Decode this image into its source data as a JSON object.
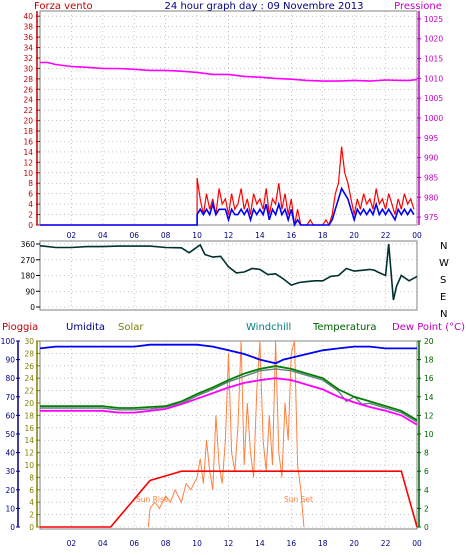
{
  "header": {
    "left_label": "Forza vento",
    "title": "24 hour graph day : 09 Novembre 2013",
    "right_label": "Pressione"
  },
  "colors": {
    "background": "#ffffff",
    "frame": "#808080",
    "grid": "#a0a0a0",
    "wind_gust": "#ff0000",
    "wind_avg": "#0000ff",
    "pressure": "#ff00ff",
    "direction": "#003030",
    "rain": "#ff0000",
    "humidity": "#0000ff",
    "solar": "#ff8040",
    "windchill": "#608080",
    "temperature": "#008000",
    "dewpoint": "#ff00ff",
    "label_red": "#c00000",
    "label_navy": "#000080",
    "label_olive": "#808000",
    "label_teal": "#008080",
    "label_green": "#006000",
    "label_magenta": "#c000c0"
  },
  "legend": {
    "pioggia": "Pioggia",
    "umidita": "Umidita",
    "solar": "Solar",
    "windchill": "Windchill",
    "temperatura": "Temperatura",
    "dewpoint": "Dew Point (°C)"
  },
  "direction_letters": [
    "N",
    "W",
    "S",
    "E",
    "N"
  ],
  "annotations": {
    "sunrise": "Sun Rise",
    "sunset": "Sun Set"
  },
  "x_ticks": [
    "02",
    "04",
    "06",
    "08",
    "10",
    "12",
    "14",
    "16",
    "18",
    "20",
    "22",
    "00"
  ],
  "chart_data": [
    {
      "type": "line",
      "title": "24 hour graph day : 09 Novembre 2013",
      "x_unit": "hour",
      "xlim": [
        0,
        24
      ],
      "y_left": {
        "label": "Forza vento",
        "ticks": [
          0,
          2,
          4,
          6,
          8,
          10,
          12,
          14,
          16,
          18,
          20,
          22,
          24,
          26,
          28,
          30,
          32,
          34,
          36,
          38,
          40
        ],
        "lim": [
          0,
          41
        ]
      },
      "y_right": {
        "label": "Pressione",
        "ticks": [
          975,
          980,
          985,
          990,
          995,
          1000,
          1005,
          1010,
          1015,
          1020,
          1025
        ],
        "lim": [
          973,
          1027
        ]
      },
      "series": [
        {
          "axis": "left",
          "x": [
            0,
            10.0,
            10.0,
            10.2,
            10.4,
            10.6,
            10.8,
            11.0,
            11.2,
            11.4,
            11.6,
            11.8,
            12.0,
            12.2,
            12.4,
            12.6,
            12.8,
            13.0,
            13.2,
            13.4,
            13.6,
            13.8,
            14.0,
            14.2,
            14.4,
            14.6,
            14.8,
            15.0,
            15.2,
            15.4,
            15.6,
            15.8,
            16.0,
            16.2,
            16.4,
            16.6,
            16.8,
            17.0,
            17.2,
            17.4,
            17.6,
            17.8,
            18.0,
            18.2,
            18.4,
            18.6,
            18.8,
            19.0,
            19.2,
            19.4,
            19.6,
            19.8,
            20.0,
            20.2,
            20.4,
            20.6,
            20.8,
            21.0,
            21.2,
            21.4,
            21.6,
            21.8,
            22.0,
            22.2,
            22.4,
            22.6,
            22.8,
            23.0,
            23.2,
            23.4,
            23.6,
            23.8
          ],
          "values": [
            0,
            0,
            9,
            5,
            2,
            6,
            3,
            5,
            2,
            7,
            4,
            5,
            2,
            6,
            3,
            4,
            7,
            3,
            5,
            2,
            6,
            4,
            5,
            3,
            7,
            2,
            5,
            4,
            8,
            3,
            6,
            2,
            5,
            0,
            3,
            0,
            0,
            0,
            1,
            0,
            0,
            0,
            0,
            1,
            0,
            2,
            6,
            8,
            15,
            10,
            8,
            5,
            2,
            5,
            3,
            6,
            4,
            5,
            3,
            7,
            4,
            5,
            3,
            6,
            4,
            2,
            5,
            3,
            6,
            4,
            5,
            3
          ]
        },
        {
          "axis": "left",
          "x": [
            0,
            10.0,
            10.0,
            10.2,
            10.4,
            10.6,
            10.8,
            11.0,
            11.2,
            11.4,
            11.6,
            11.8,
            12.0,
            12.2,
            12.4,
            12.6,
            12.8,
            13.0,
            13.2,
            13.4,
            13.6,
            13.8,
            14.0,
            14.2,
            14.4,
            14.6,
            14.8,
            15.0,
            15.2,
            15.4,
            15.6,
            15.8,
            16.0,
            16.2,
            16.4,
            16.6,
            16.8,
            17.0,
            17.2,
            17.4,
            17.6,
            17.8,
            18.0,
            18.2,
            18.4,
            18.6,
            18.8,
            19.0,
            19.2,
            19.4,
            19.6,
            19.8,
            20.0,
            20.2,
            20.4,
            20.6,
            20.8,
            21.0,
            21.2,
            21.4,
            21.6,
            21.8,
            22.0,
            22.2,
            22.4,
            22.6,
            22.8,
            23.0,
            23.2,
            23.4,
            23.6,
            23.8
          ],
          "values": [
            0,
            0,
            2,
            3,
            2,
            3,
            2,
            4,
            2,
            3,
            3,
            3,
            1,
            3,
            2,
            2,
            3,
            2,
            3,
            1,
            3,
            2,
            3,
            2,
            4,
            1,
            3,
            2,
            4,
            2,
            3,
            1,
            3,
            0,
            1,
            0,
            0,
            0,
            0,
            0,
            0,
            0,
            0,
            0,
            0,
            1,
            3,
            5,
            7,
            6,
            5,
            3,
            1,
            3,
            2,
            3,
            2,
            3,
            2,
            4,
            2,
            3,
            2,
            3,
            2,
            1,
            3,
            2,
            3,
            2,
            3,
            2
          ]
        },
        {
          "axis": "right",
          "x": [
            0,
            0.5,
            1,
            2,
            3,
            4,
            5,
            6,
            7,
            8,
            9,
            10,
            11,
            12,
            13,
            14,
            15,
            16,
            17,
            18,
            19,
            20,
            21,
            22,
            23,
            23.5,
            24
          ],
          "values": [
            1014,
            1014,
            1013.5,
            1013,
            1012.8,
            1012.5,
            1012.5,
            1012.3,
            1012,
            1012,
            1011.8,
            1011.5,
            1011,
            1011,
            1010.5,
            1010.3,
            1010,
            1009.8,
            1009.5,
            1009.3,
            1009.3,
            1009.5,
            1009.3,
            1009.6,
            1009.5,
            1009.5,
            1009.7
          ]
        }
      ]
    },
    {
      "type": "line",
      "x_unit": "hour",
      "xlim": [
        0,
        24
      ],
      "y_left": {
        "ticks": [
          0,
          90,
          180,
          270,
          360
        ],
        "lim": [
          0,
          360
        ]
      },
      "series": [
        {
          "x": [
            0,
            0.5,
            1,
            2,
            3,
            4,
            5,
            6,
            7,
            8,
            9,
            9.5,
            9.8,
            10.2,
            10.5,
            11,
            11.5,
            12,
            12.5,
            13,
            13.5,
            14,
            14.5,
            15,
            15.5,
            16,
            16.5,
            17,
            17.5,
            18,
            18.5,
            19,
            19.5,
            20,
            20.5,
            21,
            21.3,
            21.5,
            22,
            22.2,
            22.5,
            22.7,
            23,
            23.5,
            24
          ],
          "values": [
            350,
            345,
            340,
            340,
            345,
            345,
            348,
            348,
            348,
            340,
            338,
            310,
            330,
            355,
            300,
            285,
            290,
            230,
            195,
            200,
            220,
            215,
            185,
            190,
            160,
            125,
            140,
            145,
            150,
            150,
            175,
            180,
            220,
            205,
            210,
            215,
            210,
            200,
            180,
            360,
            40,
            120,
            180,
            150,
            175
          ]
        }
      ]
    },
    {
      "type": "line",
      "x_unit": "hour",
      "xlim": [
        0,
        24
      ],
      "y_axes": [
        {
          "name": "Pioggia",
          "ticks": [
            0,
            10,
            20,
            30,
            40,
            50,
            60,
            70,
            80,
            90,
            100
          ],
          "lim": [
            0,
            100
          ]
        },
        {
          "name": "Umidita",
          "ticks": [
            0,
            2,
            4,
            6,
            8,
            10,
            12,
            14,
            16,
            18,
            20,
            22,
            24,
            26,
            28,
            30
          ],
          "lim": [
            0,
            30
          ]
        },
        {
          "name": "Temperatura",
          "ticks": [
            0,
            2,
            4,
            6,
            8,
            10,
            12,
            14,
            16,
            18,
            20
          ],
          "lim": [
            0,
            20
          ]
        }
      ],
      "series": [
        {
          "axis": "left",
          "x": [
            0,
            1,
            2,
            3,
            4,
            5,
            6,
            7,
            8,
            9,
            10,
            11,
            12,
            13,
            14,
            14.5,
            15,
            15.5,
            16,
            17,
            18,
            19,
            20,
            21,
            22,
            23,
            24
          ],
          "values": [
            96,
            97,
            97,
            97,
            97,
            97,
            97,
            98,
            98,
            98,
            98,
            97,
            95,
            93,
            90,
            89,
            88,
            90,
            91,
            93,
            95,
            96,
            97,
            97,
            96,
            96,
            96
          ]
        },
        {
          "axis": "right",
          "x": [
            0,
            1,
            2,
            3,
            4,
            5,
            6,
            7,
            8,
            9,
            10,
            11,
            12,
            13,
            14,
            15,
            16,
            17,
            18,
            19,
            20,
            21,
            22,
            23,
            24
          ],
          "values": [
            13,
            13,
            13,
            13,
            13,
            12.8,
            12.8,
            12.9,
            13,
            13.5,
            14.3,
            15,
            15.8,
            16.5,
            17,
            17.3,
            17,
            16.5,
            16,
            14.8,
            14,
            13.5,
            13,
            12.5,
            11.5
          ]
        },
        {
          "axis": "right",
          "x": [
            0,
            1,
            2,
            3,
            4,
            5,
            6,
            7,
            8,
            9,
            10,
            11,
            12,
            13,
            14,
            15,
            16,
            17,
            18,
            19,
            20,
            21,
            22,
            23,
            24
          ],
          "values": [
            12.5,
            12.5,
            12.5,
            12.5,
            12.5,
            12.3,
            12.3,
            12.5,
            12.7,
            13.2,
            13.8,
            14.4,
            15,
            15.5,
            15.8,
            16,
            15.8,
            15.3,
            14.8,
            14,
            13.4,
            12.9,
            12.5,
            12,
            11
          ]
        },
        {
          "axis": "right",
          "x": [
            0,
            1,
            2,
            3,
            4,
            5,
            6,
            7,
            8,
            9,
            10,
            11,
            12,
            13,
            14,
            15,
            16,
            17,
            18,
            19,
            19.5,
            20,
            20.5,
            21,
            22,
            23,
            24
          ],
          "values": [
            12.8,
            12.8,
            12.8,
            12.8,
            12.8,
            12.6,
            12.6,
            12.7,
            12.9,
            13.3,
            14.1,
            14.8,
            15.6,
            16.2,
            16.8,
            17,
            16.8,
            16.3,
            15.8,
            14.6,
            13.5,
            14,
            13.2,
            13.3,
            12.8,
            12.3,
            11.3
          ]
        },
        {
          "axis": "right",
          "x": [
            0,
            4.5,
            5,
            5.5,
            6,
            6.5,
            7,
            8,
            9,
            10,
            11,
            12,
            13,
            14,
            15,
            16,
            17,
            18,
            19,
            20,
            21,
            22,
            23,
            24
          ],
          "values": [
            0,
            0,
            1,
            2,
            3,
            4,
            5,
            5.5,
            6,
            6,
            6,
            6,
            6,
            6,
            6,
            6,
            6,
            6,
            6,
            6,
            6,
            6,
            6,
            0
          ]
        },
        {
          "axis": "middle",
          "x": [
            6.9,
            7,
            7.3,
            7.6,
            8,
            8.3,
            8.6,
            9,
            9.3,
            9.6,
            10,
            10.2,
            10.4,
            10.6,
            10.8,
            11,
            11.2,
            11.4,
            11.6,
            11.8,
            12,
            12.2,
            12.4,
            12.6,
            12.8,
            13,
            13.2,
            13.4,
            13.6,
            13.8,
            14,
            14.2,
            14.4,
            14.6,
            14.8,
            15,
            15.2,
            15.4,
            15.6,
            15.8,
            16,
            16.2,
            16.4,
            16.6,
            16.8
          ],
          "values": [
            0,
            3,
            4,
            3,
            5,
            4,
            6,
            4,
            7,
            6,
            8,
            11,
            7,
            14,
            9,
            6,
            18,
            10,
            7,
            14,
            28,
            12,
            9,
            16,
            30,
            10,
            20,
            12,
            8,
            22,
            30,
            14,
            9,
            18,
            10,
            30,
            12,
            8,
            20,
            14,
            28,
            30,
            10,
            6,
            0
          ]
        }
      ]
    }
  ]
}
